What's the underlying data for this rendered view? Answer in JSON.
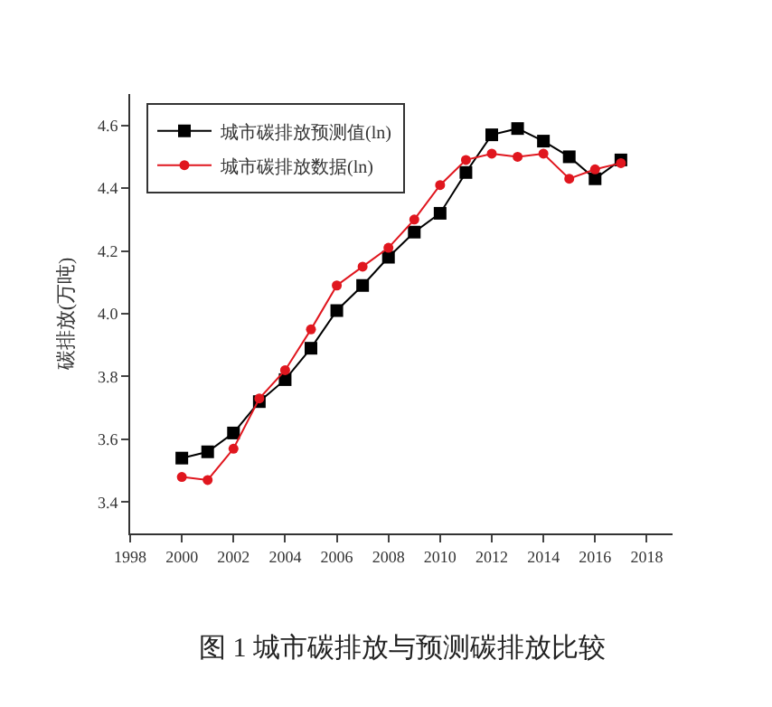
{
  "chart_data": {
    "type": "line",
    "ylabel": "碳排放(万吨)",
    "annotations": [
      "图 1 城市碳排放与预测碳排放比较"
    ],
    "x": [
      2000,
      2001,
      2002,
      2003,
      2004,
      2005,
      2006,
      2007,
      2008,
      2009,
      2010,
      2011,
      2012,
      2013,
      2014,
      2015,
      2016,
      2017
    ],
    "series": [
      {
        "name": "城市碳排放预测值(ln)",
        "color": "#000000",
        "marker": "square",
        "values": [
          3.54,
          3.56,
          3.62,
          3.72,
          3.79,
          3.89,
          4.01,
          4.09,
          4.18,
          4.26,
          4.32,
          4.45,
          4.57,
          4.59,
          4.55,
          4.5,
          4.43,
          4.49
        ]
      },
      {
        "name": "城市碳排放数据(ln)",
        "color": "#e0161e",
        "marker": "circle",
        "values": [
          3.48,
          3.47,
          3.57,
          3.73,
          3.82,
          3.95,
          4.09,
          4.15,
          4.21,
          4.3,
          4.41,
          4.49,
          4.51,
          4.5,
          4.51,
          4.43,
          4.46,
          4.48
        ]
      }
    ],
    "xlim": [
      1998,
      2019
    ],
    "xticks": [
      1998,
      2000,
      2002,
      2004,
      2006,
      2008,
      2010,
      2012,
      2014,
      2016,
      2018
    ],
    "ylim": [
      3.3,
      4.7
    ],
    "yticks": [
      {
        "value": 3.4,
        "label": "3.4"
      },
      {
        "value": 3.6,
        "label": "3.6"
      },
      {
        "value": 3.8,
        "label": "3.8"
      },
      {
        "value": 4.0,
        "label": "4.0"
      },
      {
        "value": 4.2,
        "label": "4.2"
      },
      {
        "value": 4.4,
        "label": "4.4"
      },
      {
        "value": 4.6,
        "label": "4.6"
      }
    ],
    "grid": false,
    "legend": "top left"
  }
}
